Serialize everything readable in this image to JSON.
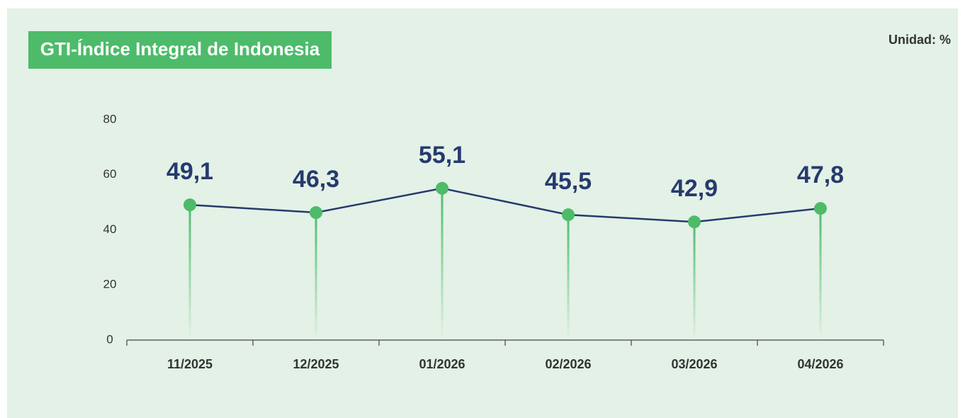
{
  "chart_data": {
    "type": "line",
    "title": "GTI-Índice Integral de Indonesia",
    "unit_label": "Unidad: %",
    "categories": [
      "11/2025",
      "12/2025",
      "01/2026",
      "02/2026",
      "03/2026",
      "04/2026"
    ],
    "values": [
      49.1,
      46.3,
      55.1,
      45.5,
      42.9,
      47.8
    ],
    "value_labels": [
      "49,1",
      "46,3",
      "55,1",
      "45,5",
      "42,9",
      "47,8"
    ],
    "color": "#263a6e",
    "marker_color": "#4dbb6a",
    "ylim": [
      0,
      80
    ],
    "yticks": [
      0,
      20,
      40,
      60,
      80
    ],
    "grid": false
  }
}
